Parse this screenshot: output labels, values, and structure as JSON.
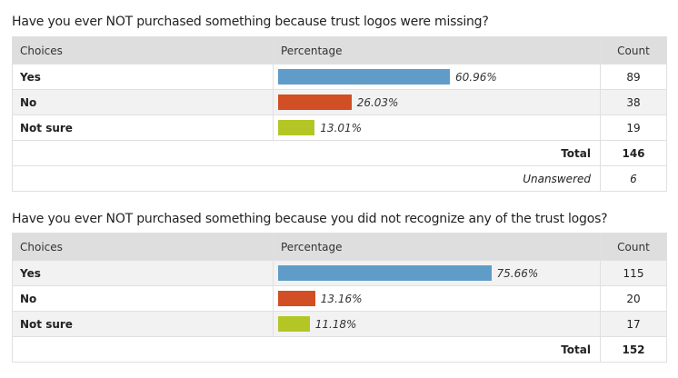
{
  "chart_data": [
    {
      "type": "table",
      "title": "Have you ever NOT purchased something because trust logos were missing?",
      "headers": [
        "Choices",
        "Percentage",
        "Count"
      ],
      "rows": [
        {
          "choice": "Yes",
          "percent": 60.96,
          "percent_label": "60.96%",
          "count": "89",
          "color": "#5f9dc8"
        },
        {
          "choice": "No",
          "percent": 26.03,
          "percent_label": "26.03%",
          "count": "38",
          "color": "#d24e24"
        },
        {
          "choice": "Not sure",
          "percent": 13.01,
          "percent_label": "13.01%",
          "count": "19",
          "color": "#b3c625"
        }
      ],
      "total_label": "Total",
      "total": "146",
      "unanswered_label": "Unanswered",
      "unanswered": "6"
    },
    {
      "type": "table",
      "title": "Have you ever NOT purchased something because you did not recognize any of the trust logos?",
      "headers": [
        "Choices",
        "Percentage",
        "Count"
      ],
      "rows": [
        {
          "choice": "Yes",
          "percent": 75.66,
          "percent_label": "75.66%",
          "count": "115",
          "color": "#5f9dc8"
        },
        {
          "choice": "No",
          "percent": 13.16,
          "percent_label": "13.16%",
          "count": "20",
          "color": "#d24e24"
        },
        {
          "choice": "Not sure",
          "percent": 11.18,
          "percent_label": "11.18%",
          "count": "17",
          "color": "#b3c625"
        }
      ],
      "total_label": "Total",
      "total": "152"
    }
  ]
}
